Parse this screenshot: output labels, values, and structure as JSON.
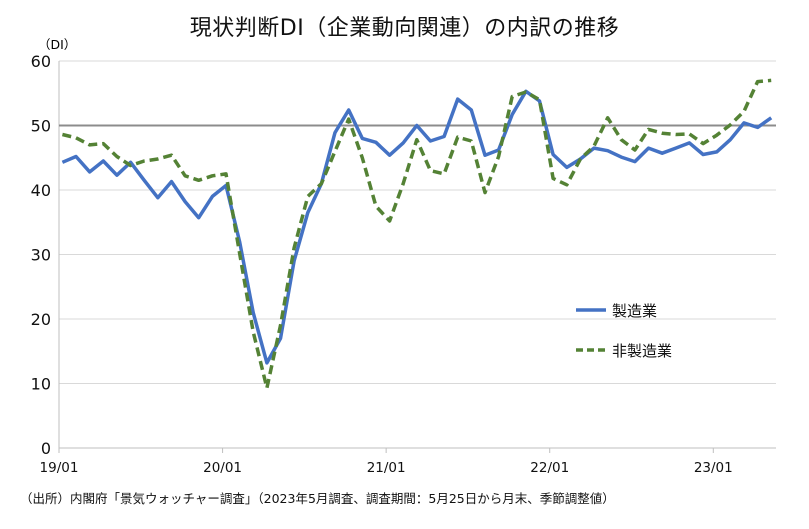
{
  "title": "現状判断DI（企業動向関連）の内訳の推移",
  "source": "（出所）内閣府「景気ウォッチャー調査」（2023年5月調査、調査期間：5月25日から月末、季節調整値）",
  "chart_data": {
    "type": "line",
    "unit_label": "（DI）",
    "ylim": [
      0,
      60
    ],
    "yticks": [
      0,
      10,
      20,
      30,
      40,
      50,
      60
    ],
    "reference_line": 50,
    "grid": true,
    "legend_position": "right",
    "x_tick_labels": [
      "19/01",
      "20/01",
      "21/01",
      "22/01",
      "23/01"
    ],
    "x_tick_index": [
      0,
      12,
      24,
      36,
      48
    ],
    "x_count": 53,
    "series": [
      {
        "name": "製造業",
        "color": "#4472C4",
        "style": "solid",
        "values": [
          44.3,
          45.2,
          42.8,
          44.5,
          42.3,
          44.3,
          41.5,
          38.8,
          41.3,
          38.2,
          35.7,
          39.0,
          40.7,
          32.0,
          21.0,
          13.2,
          17.0,
          29.0,
          36.5,
          41.0,
          48.9,
          52.4,
          48.0,
          47.4,
          45.4,
          47.3,
          50.0,
          47.6,
          48.3,
          54.1,
          52.4,
          45.4,
          46.2,
          51.7,
          55.3,
          53.8,
          45.5,
          43.5,
          44.8,
          46.5,
          46.1,
          45.1,
          44.4,
          46.5,
          45.7,
          46.5,
          47.3,
          45.5,
          45.9,
          47.8,
          50.4,
          49.7,
          51.2
        ]
      },
      {
        "name": "非製造業",
        "color": "#548235",
        "style": "dashed",
        "values": [
          48.6,
          48.1,
          47.0,
          47.2,
          45.2,
          43.8,
          44.5,
          44.8,
          45.4,
          42.2,
          41.5,
          42.2,
          42.5,
          30.2,
          18.0,
          9.3,
          19.0,
          31.0,
          39.0,
          41.0,
          46.0,
          51.0,
          45.0,
          37.5,
          35.2,
          41.0,
          47.8,
          43.0,
          42.5,
          48.2,
          47.6,
          39.6,
          45.2,
          54.5,
          55.2,
          54.0,
          41.8,
          40.8,
          44.8,
          46.8,
          51.2,
          47.8,
          46.2,
          49.4,
          48.8,
          48.6,
          48.7,
          47.2,
          48.5,
          50.1,
          52.2,
          56.8,
          57.0
        ]
      }
    ]
  }
}
